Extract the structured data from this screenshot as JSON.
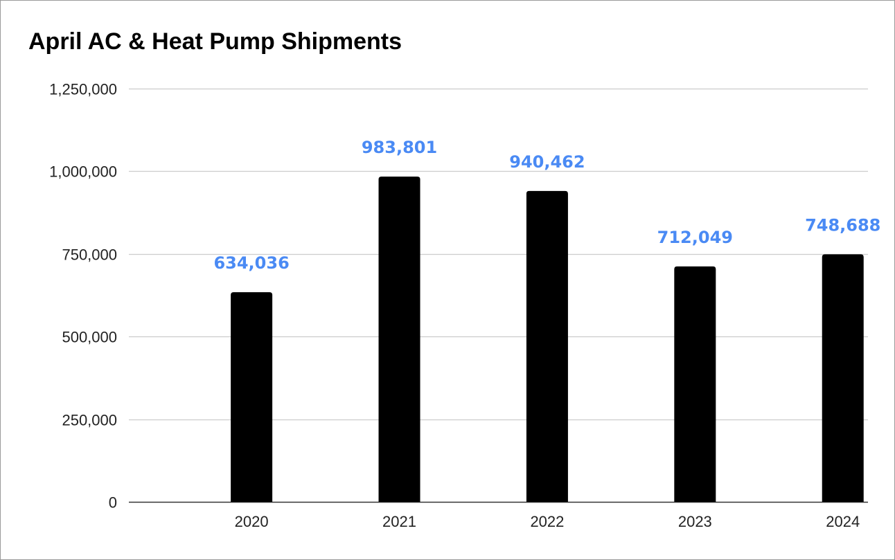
{
  "chart_data": {
    "type": "bar",
    "title": "April AC & Heat Pump Shipments",
    "categories": [
      "2020",
      "2021",
      "2022",
      "2023",
      "2024"
    ],
    "values": [
      634036,
      983801,
      940462,
      712049,
      748688
    ],
    "data_labels": [
      "634,036",
      "983,801",
      "940,462",
      "712,049",
      "748,688"
    ],
    "xlabel": "",
    "ylabel": "",
    "ylim": [
      0,
      1250000
    ],
    "yticks": [
      0,
      250000,
      500000,
      750000,
      1000000,
      1250000
    ],
    "ytick_labels": [
      "0",
      "250,000",
      "500,000",
      "750,000",
      "1,000,000",
      "1,250,000"
    ],
    "grid": true,
    "legend": "none",
    "colors": {
      "bar": "#000000",
      "data_label": "#4a8af4",
      "grid": "#cccccc"
    }
  }
}
